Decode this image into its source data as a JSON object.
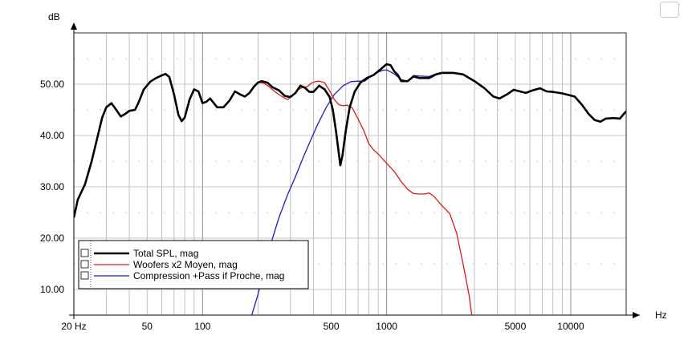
{
  "chart_data": {
    "type": "line",
    "xscale": "log",
    "xlim": [
      20,
      20000
    ],
    "ylim": [
      5,
      60
    ],
    "xunit": "Hz",
    "yunit": "dB",
    "grid": true,
    "legend_position": "bottom-left",
    "x_ticks": [
      {
        "value": 20,
        "label": "20 Hz"
      },
      {
        "value": 50,
        "label": "50"
      },
      {
        "value": 100,
        "label": "100"
      },
      {
        "value": 500,
        "label": "500"
      },
      {
        "value": 1000,
        "label": "1000"
      },
      {
        "value": 5000,
        "label": "5000"
      },
      {
        "value": 10000,
        "label": "10000"
      }
    ],
    "y_ticks": [
      {
        "value": 10,
        "label": "10.00"
      },
      {
        "value": 20,
        "label": "20.00"
      },
      {
        "value": 30,
        "label": "30.00"
      },
      {
        "value": 40,
        "label": "40.00"
      },
      {
        "value": 50,
        "label": "50.00"
      }
    ],
    "series": [
      {
        "name": "Total SPL, mag",
        "color": "#000000",
        "points": [
          [
            20,
            24
          ],
          [
            21,
            27.5
          ],
          [
            23,
            30.5
          ],
          [
            25,
            35
          ],
          [
            27,
            40
          ],
          [
            28.5,
            43.5
          ],
          [
            30,
            45.5
          ],
          [
            32,
            46.3
          ],
          [
            34,
            45
          ],
          [
            36,
            43.7
          ],
          [
            38,
            44.2
          ],
          [
            40,
            44.8
          ],
          [
            43,
            45
          ],
          [
            45,
            46.5
          ],
          [
            48,
            49
          ],
          [
            52,
            50.5
          ],
          [
            56,
            51.2
          ],
          [
            60,
            51.7
          ],
          [
            63,
            52
          ],
          [
            66,
            51.4
          ],
          [
            70,
            48
          ],
          [
            74,
            44
          ],
          [
            77,
            42.8
          ],
          [
            80,
            43.5
          ],
          [
            85,
            47
          ],
          [
            90,
            49
          ],
          [
            95,
            48.6
          ],
          [
            100,
            46.3
          ],
          [
            105,
            46.6
          ],
          [
            110,
            47.2
          ],
          [
            120,
            45.5
          ],
          [
            130,
            45.5
          ],
          [
            140,
            46.8
          ],
          [
            150,
            48.6
          ],
          [
            160,
            48
          ],
          [
            170,
            47.6
          ],
          [
            180,
            48.3
          ],
          [
            190,
            49.5
          ],
          [
            200,
            50.3
          ],
          [
            210,
            50.6
          ],
          [
            225,
            50.3
          ],
          [
            240,
            49.4
          ],
          [
            260,
            48.8
          ],
          [
            280,
            47.7
          ],
          [
            300,
            47.5
          ],
          [
            320,
            48.3
          ],
          [
            340,
            49.7
          ],
          [
            360,
            49.3
          ],
          [
            380,
            48.5
          ],
          [
            400,
            48.5
          ],
          [
            430,
            49.7
          ],
          [
            460,
            49
          ],
          [
            490,
            47.5
          ],
          [
            510,
            45
          ],
          [
            530,
            41
          ],
          [
            550,
            36.5
          ],
          [
            560,
            34.2
          ],
          [
            575,
            36
          ],
          [
            600,
            41
          ],
          [
            630,
            45.5
          ],
          [
            670,
            48.5
          ],
          [
            720,
            50.3
          ],
          [
            780,
            51.2
          ],
          [
            850,
            51.8
          ],
          [
            920,
            52.8
          ],
          [
            1000,
            53.9
          ],
          [
            1050,
            53.7
          ],
          [
            1100,
            52.5
          ],
          [
            1150,
            51.8
          ],
          [
            1200,
            50.6
          ],
          [
            1300,
            50.6
          ],
          [
            1400,
            51.5
          ],
          [
            1500,
            51.2
          ],
          [
            1700,
            51.2
          ],
          [
            1850,
            51.9
          ],
          [
            2000,
            52.2
          ],
          [
            2300,
            52.2
          ],
          [
            2600,
            51.9
          ],
          [
            3000,
            50.6
          ],
          [
            3400,
            49.2
          ],
          [
            3800,
            47.6
          ],
          [
            4100,
            47.2
          ],
          [
            4500,
            48
          ],
          [
            4900,
            48.9
          ],
          [
            5300,
            48.6
          ],
          [
            5700,
            48.3
          ],
          [
            6200,
            48.8
          ],
          [
            6800,
            49.2
          ],
          [
            7400,
            48.6
          ],
          [
            8000,
            48.5
          ],
          [
            9000,
            48.2
          ],
          [
            10500,
            47.6
          ],
          [
            11500,
            46
          ],
          [
            12500,
            44.2
          ],
          [
            13500,
            43
          ],
          [
            14500,
            42.7
          ],
          [
            15500,
            43.3
          ],
          [
            17000,
            43.4
          ],
          [
            18500,
            43.3
          ],
          [
            19500,
            44.3
          ],
          [
            20000,
            44.7
          ]
        ]
      },
      {
        "name": "Woofers x2 Moyen, mag",
        "color": "#d21e1e",
        "points": [
          [
            200,
            50.4
          ],
          [
            215,
            50.2
          ],
          [
            230,
            49.5
          ],
          [
            250,
            48.4
          ],
          [
            270,
            47.6
          ],
          [
            290,
            47
          ],
          [
            310,
            47.9
          ],
          [
            330,
            48.9
          ],
          [
            350,
            49.4
          ],
          [
            370,
            49.5
          ],
          [
            390,
            50.2
          ],
          [
            410,
            50.5
          ],
          [
            430,
            50.6
          ],
          [
            460,
            50.3
          ],
          [
            490,
            48.7
          ],
          [
            520,
            47
          ],
          [
            550,
            46
          ],
          [
            580,
            45.8
          ],
          [
            610,
            45.9
          ],
          [
            650,
            45.4
          ],
          [
            700,
            43.2
          ],
          [
            750,
            41
          ],
          [
            800,
            38.4
          ],
          [
            850,
            37.2
          ],
          [
            900,
            36.4
          ],
          [
            1000,
            34.6
          ],
          [
            1100,
            33
          ],
          [
            1200,
            31
          ],
          [
            1300,
            29.5
          ],
          [
            1400,
            28.7
          ],
          [
            1500,
            28.6
          ],
          [
            1600,
            28.6
          ],
          [
            1700,
            28.8
          ],
          [
            1800,
            28.2
          ],
          [
            2000,
            26.3
          ],
          [
            2200,
            24.8
          ],
          [
            2400,
            21
          ],
          [
            2600,
            15
          ],
          [
            2800,
            9
          ],
          [
            2900,
            5
          ]
        ]
      },
      {
        "name": "Compression +Pass if Proche, mag",
        "color": "#1f1fb4",
        "points": [
          [
            185,
            5
          ],
          [
            200,
            9
          ],
          [
            220,
            15
          ],
          [
            240,
            20
          ],
          [
            260,
            24
          ],
          [
            290,
            28.5
          ],
          [
            320,
            32
          ],
          [
            350,
            35.5
          ],
          [
            380,
            38.5
          ],
          [
            420,
            42
          ],
          [
            470,
            45.5
          ],
          [
            520,
            48
          ],
          [
            580,
            49.7
          ],
          [
            640,
            50.5
          ],
          [
            700,
            50.6
          ],
          [
            760,
            50.6
          ],
          [
            820,
            51.5
          ],
          [
            880,
            52.2
          ],
          [
            950,
            52.7
          ],
          [
            1000,
            52.8
          ],
          [
            1100,
            52
          ],
          [
            1200,
            50.9
          ],
          [
            1300,
            50.6
          ],
          [
            1400,
            51.7
          ],
          [
            1500,
            51.6
          ],
          [
            1700,
            51.5
          ],
          [
            1850,
            52
          ],
          [
            2000,
            52.3
          ],
          [
            2300,
            52.3
          ],
          [
            2600,
            51.9
          ],
          [
            3000,
            50.6
          ],
          [
            3400,
            49.2
          ],
          [
            3800,
            47.6
          ],
          [
            4100,
            47.2
          ],
          [
            4500,
            48
          ],
          [
            4900,
            48.9
          ],
          [
            5300,
            48.6
          ],
          [
            5700,
            48.3
          ],
          [
            6200,
            48.8
          ],
          [
            6800,
            49.2
          ],
          [
            7400,
            48.6
          ],
          [
            8000,
            48.5
          ],
          [
            9000,
            48.2
          ],
          [
            10500,
            47.6
          ],
          [
            11500,
            46
          ],
          [
            12500,
            44.2
          ],
          [
            13500,
            43
          ],
          [
            14500,
            42.7
          ],
          [
            15500,
            43.3
          ],
          [
            17000,
            43.4
          ],
          [
            18500,
            43.3
          ],
          [
            19500,
            44.3
          ],
          [
            20000,
            44.7
          ]
        ]
      }
    ]
  }
}
